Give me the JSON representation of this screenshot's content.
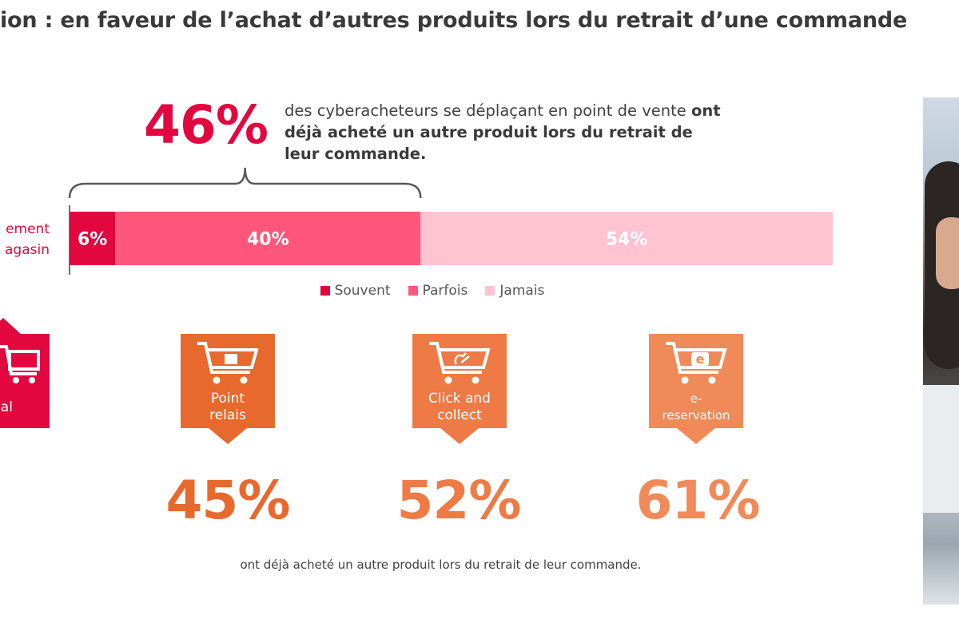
{
  "title": "ion : en faveur de l’achat d’autres produits lors du retrait d’une commande",
  "headline": {
    "percent": "46%",
    "text_regular": "des cyberacheteurs se déplaçant en point de vente ",
    "text_bold": "ont déjà acheté un autre produit lors du retrait de leur commande."
  },
  "row_label": {
    "line1": "ement",
    "line2": "agasin"
  },
  "colors": {
    "souvent": "#e2083f",
    "parfois": "#ff577c",
    "jamais": "#ffc3d2",
    "orange_dark": "#e8692d",
    "orange_mid": "#ee7a45",
    "orange_light": "#f08a59"
  },
  "chart_data": {
    "type": "bar",
    "orientation": "horizontal-stacked",
    "categories": [
      ""
    ],
    "series": [
      {
        "name": "Souvent",
        "values": [
          6
        ]
      },
      {
        "name": "Parfois",
        "values": [
          40
        ]
      },
      {
        "name": "Jamais",
        "values": [
          54
        ]
      }
    ],
    "data_labels": [
      "6%",
      "40%",
      "54%"
    ],
    "bracket": {
      "spans_series": [
        "Souvent",
        "Parfois"
      ],
      "value": "46%"
    },
    "xlim": [
      0,
      100
    ],
    "legend_position": "bottom"
  },
  "legend": [
    {
      "label": "Souvent",
      "color": "#e2083f"
    },
    {
      "label": "Parfois",
      "color": "#ff577c"
    },
    {
      "label": "Jamais",
      "color": "#ffc3d2"
    }
  ],
  "badges": {
    "global": {
      "label": "bal",
      "icon": "shopping-cart-icon"
    },
    "point_relais": {
      "line1": "Point",
      "line2": "relais",
      "percent": "45%",
      "icon": "cart-with-box-icon"
    },
    "click_collect": {
      "line1": "Click and",
      "line2": "collect",
      "percent": "52%",
      "icon": "cart-with-hand-icon"
    },
    "e_reservation": {
      "line1": "e-",
      "line2": "reservation",
      "percent": "61%",
      "icon": "cart-with-e-icon"
    }
  },
  "bottom_note": "ont déjà acheté un autre produit lors du retrait de leur commande."
}
